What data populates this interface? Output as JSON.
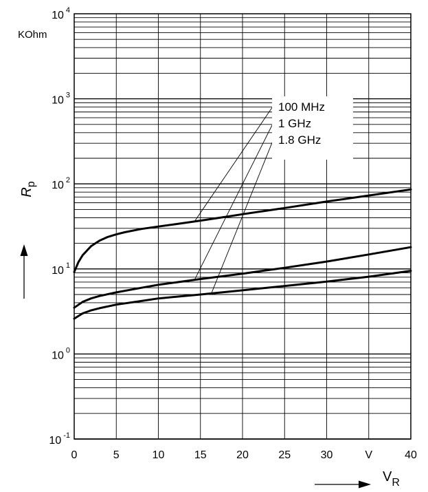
{
  "chart_data": {
    "type": "line",
    "yscale": "log",
    "ylabel": "R",
    "ylabel_sub": "p",
    "yunit": "KOhm",
    "xlabel": "V",
    "xlabel_sub": "R",
    "xlim": [
      0,
      40
    ],
    "ylim": [
      0.1,
      10000
    ],
    "x_ticks": [
      {
        "value": 0,
        "label": "0"
      },
      {
        "value": 5,
        "label": "5"
      },
      {
        "value": 10,
        "label": "10"
      },
      {
        "value": 15,
        "label": "15"
      },
      {
        "value": 20,
        "label": "20"
      },
      {
        "value": 25,
        "label": "25"
      },
      {
        "value": 30,
        "label": "30"
      },
      {
        "value": 35,
        "label": "V"
      },
      {
        "value": 40,
        "label": "40"
      }
    ],
    "y_ticks": [
      {
        "value": 0.1,
        "base": "10",
        "exp": "-1"
      },
      {
        "value": 1,
        "base": "10",
        "exp": "0"
      },
      {
        "value": 10,
        "base": "10",
        "exp": "1"
      },
      {
        "value": 100,
        "base": "10",
        "exp": "2"
      },
      {
        "value": 1000,
        "base": "10",
        "exp": "3"
      },
      {
        "value": 10000,
        "base": "10",
        "exp": "4"
      }
    ],
    "grid": true,
    "series": [
      {
        "name": "100 MHz",
        "x": [
          0,
          0.5,
          1,
          2,
          3,
          4,
          5,
          6,
          8,
          10,
          12,
          15,
          18,
          20,
          25,
          30,
          35,
          40
        ],
        "y": [
          9.2,
          12,
          14.5,
          18.5,
          21.5,
          23.8,
          25.5,
          27,
          29.5,
          31.5,
          33.5,
          37,
          41,
          44,
          52,
          62,
          73,
          86
        ],
        "label_anchor_x": 14.3
      },
      {
        "name": "1 GHz",
        "x": [
          0,
          1,
          2,
          3,
          5,
          8,
          10,
          15,
          20,
          25,
          30,
          35,
          40
        ],
        "y": [
          3.5,
          4.1,
          4.5,
          4.8,
          5.3,
          6.0,
          6.5,
          7.6,
          8.8,
          10.3,
          12.2,
          14.8,
          18
        ],
        "label_anchor_x": 14.3
      },
      {
        "name": "1.8 GHz",
        "x": [
          0,
          1,
          2,
          3,
          5,
          8,
          10,
          15,
          20,
          25,
          30,
          35,
          40
        ],
        "y": [
          2.6,
          3.0,
          3.25,
          3.45,
          3.8,
          4.2,
          4.5,
          5.0,
          5.6,
          6.3,
          7.1,
          8.1,
          9.5
        ],
        "label_anchor_x": 16.3
      }
    ]
  }
}
